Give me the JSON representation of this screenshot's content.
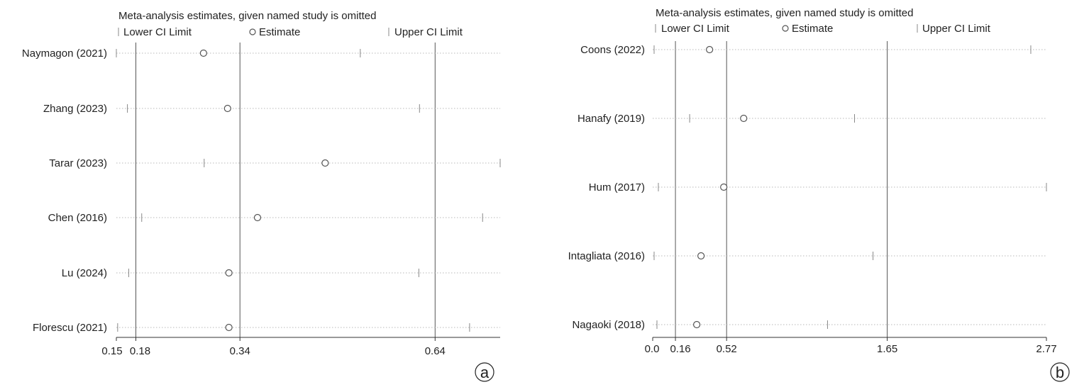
{
  "chart_data": [
    {
      "type": "forest",
      "panel_label": "a",
      "title": "Meta-analysis estimates, given named study is omitted",
      "legend": [
        "Lower CI Limit",
        "Estimate",
        "Upper CI Limit"
      ],
      "xlim": [
        0.15,
        0.74
      ],
      "ticks": [
        0.15,
        0.18,
        0.34,
        0.64
      ],
      "tick_labels": [
        "0.15",
        "0.18",
        "0.34",
        "0.64"
      ],
      "reference_lines": [
        0.18,
        0.34,
        0.64
      ],
      "studies": [
        "Naymagon (2021)",
        "Zhang (2023)",
        "Tarar (2023)",
        "Chen (2016)",
        "Lu (2024)",
        "Florescu (2021)"
      ],
      "lower": [
        0.15,
        0.167,
        0.285,
        0.189,
        0.169,
        0.152
      ],
      "estimate": [
        0.284,
        0.321,
        0.471,
        0.367,
        0.323,
        0.323
      ],
      "upper": [
        0.525,
        0.616,
        0.74,
        0.713,
        0.615,
        0.693
      ]
    },
    {
      "type": "forest",
      "panel_label": "b",
      "title": "Meta-analysis estimates, given named study is omitted",
      "legend": [
        "Lower CI Limit",
        "Estimate",
        "Upper CI Limit"
      ],
      "xlim": [
        0.0,
        2.77
      ],
      "ticks": [
        0.0,
        0.16,
        0.52,
        1.65,
        2.77
      ],
      "tick_labels": [
        "0.0",
        "0.16",
        "0.52",
        "1.65",
        "2.77"
      ],
      "reference_lines": [
        0.16,
        0.52,
        1.65
      ],
      "studies": [
        "Coons (2022)",
        "Hanafy (2019)",
        "Hum  (2017)",
        "Intagliata (2016)",
        "Nagaoki (2018)"
      ],
      "lower": [
        0.01,
        0.26,
        0.04,
        0.01,
        0.03
      ],
      "estimate": [
        0.4,
        0.64,
        0.5,
        0.34,
        0.31
      ],
      "upper": [
        2.66,
        1.42,
        2.77,
        1.55,
        1.23
      ]
    }
  ]
}
